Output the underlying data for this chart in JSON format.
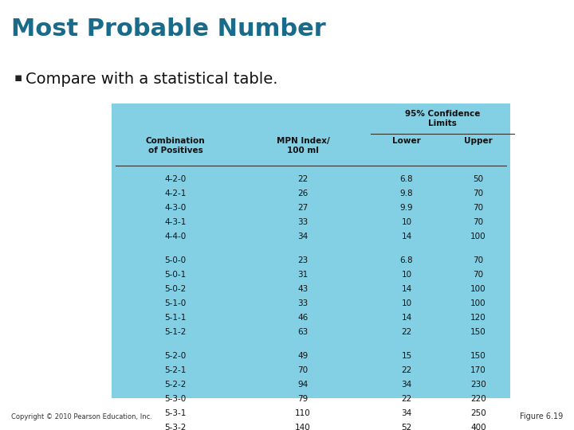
{
  "title": "Most Probable Number",
  "bullet": "Compare with a statistical table.",
  "title_color": "#1a6b8a",
  "title_bar_color": "#3a9a6e",
  "bg_color": "#ffffff",
  "table_bg_color": "#83d0e4",
  "col_headers_line1": [
    "Combination",
    "MPN Index/",
    "Lower",
    "Upper"
  ],
  "col_headers_line2": [
    "of Positives",
    "100 ml",
    "",
    ""
  ],
  "superheader": "95% Confidence\nLimits",
  "groups": [
    [
      [
        "4-2-0",
        "22",
        "6.8",
        "50"
      ],
      [
        "4-2-1",
        "26",
        "9.8",
        "70"
      ],
      [
        "4-3-0",
        "27",
        "9.9",
        "70"
      ],
      [
        "4-3-1",
        "33",
        "10",
        "70"
      ],
      [
        "4-4-0",
        "34",
        "14",
        "100"
      ]
    ],
    [
      [
        "5-0-0",
        "23",
        "6.8",
        "70"
      ],
      [
        "5-0-1",
        "31",
        "10",
        "70"
      ],
      [
        "5-0-2",
        "43",
        "14",
        "100"
      ],
      [
        "5-1-0",
        "33",
        "10",
        "100"
      ],
      [
        "5-1-1",
        "46",
        "14",
        "120"
      ],
      [
        "5-1-2",
        "63",
        "22",
        "150"
      ]
    ],
    [
      [
        "5-2-0",
        "49",
        "15",
        "150"
      ],
      [
        "5-2-1",
        "70",
        "22",
        "170"
      ],
      [
        "5-2-2",
        "94",
        "34",
        "230"
      ],
      [
        "5-3-0",
        "79",
        "22",
        "220"
      ],
      [
        "5-3-1",
        "110",
        "34",
        "250"
      ],
      [
        "5-3-2",
        "140",
        "52",
        "400"
      ]
    ]
  ],
  "copyright": "Copyright © 2010 Pearson Education, Inc.",
  "figure_label": "Figure 6.19"
}
